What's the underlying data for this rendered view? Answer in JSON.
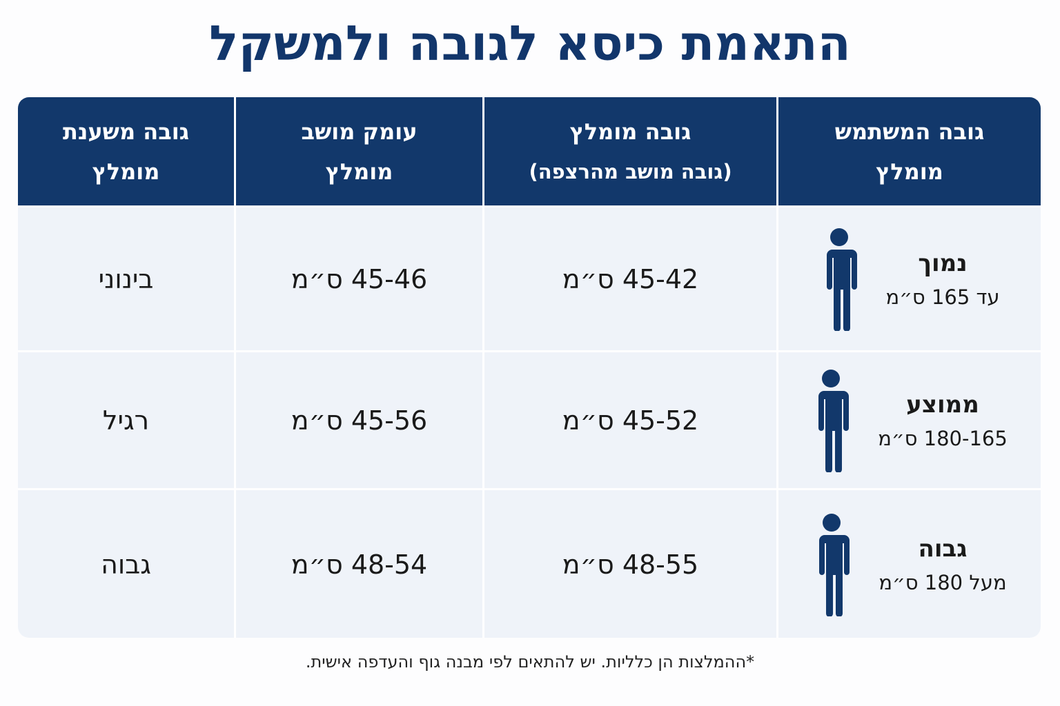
{
  "title": "התאמת כיסא לגובה ולמשקל",
  "headers": [
    {
      "line1": "גובה המשתמש",
      "line2": "מומלץ"
    },
    {
      "line1": "גובה מומלץ",
      "line2": "(גובה מושב מהרצפה)"
    },
    {
      "line1": "עומק מושב",
      "line2": "מומלץ"
    },
    {
      "line1": "גובה משענת",
      "line2": "מומלץ"
    }
  ],
  "rows": [
    {
      "icon": "person-icon",
      "user": "נמוך",
      "range": "עד 165 ס״מ",
      "seat_height": "45-42 ס״מ",
      "seat_depth": "45-46 ס״מ",
      "backrest": "בינוני"
    },
    {
      "icon": "person-icon",
      "user": "ממוצע",
      "range": "180-165 ס״מ",
      "seat_height": "45-52 ס״מ",
      "seat_depth": "45-56 ס״מ",
      "backrest": "רגיל"
    },
    {
      "icon": "person-icon",
      "user": "גבוה",
      "range": "מעל 180 ס״מ",
      "seat_height": "48-55 ס״מ",
      "seat_depth": "48-54 ס״מ",
      "backrest": "גבוה"
    }
  ],
  "footnote": "*ההמלצות הן כלליות. יש להתאים לפי מבנה גוף והעדפה אישית.",
  "colors": {
    "header": "#12386b",
    "cell": "#eff3f9",
    "title": "#12366b"
  }
}
